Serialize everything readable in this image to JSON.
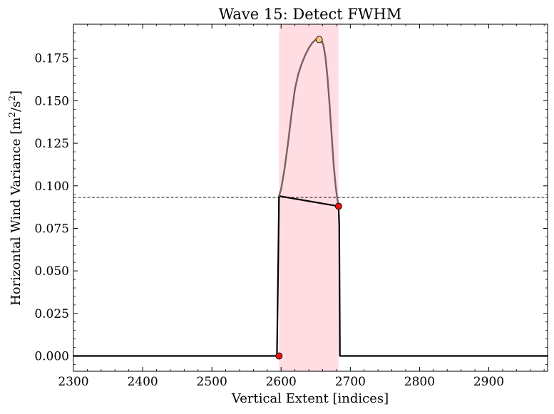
{
  "chart_data": {
    "type": "line",
    "title": "Wave 15: Detect FWHM",
    "xlabel": "Vertical Extent [indices]",
    "ylabel": "Horizontal Wind Variance [m²/s²]",
    "xlim": [
      2300,
      2985
    ],
    "ylim": [
      -0.009,
      0.195
    ],
    "x_ticks": [
      2300,
      2400,
      2500,
      2600,
      2700,
      2800,
      2900
    ],
    "x_tick_labels": [
      "2300",
      "2400",
      "2500",
      "2600",
      "2700",
      "2800",
      "2900"
    ],
    "y_ticks": [
      0.0,
      0.025,
      0.05,
      0.075,
      0.1,
      0.125,
      0.15,
      0.175
    ],
    "y_tick_labels": [
      "0.000",
      "0.025",
      "0.050",
      "0.075",
      "0.100",
      "0.125",
      "0.150",
      "0.175"
    ],
    "grid": false,
    "legend": "none",
    "half_max_line": {
      "y": 0.0932,
      "color": "#000000",
      "style": "dashed"
    },
    "fwhm_span": {
      "x": [
        2597,
        2683
      ],
      "color": "#ffdde3"
    },
    "series": [
      {
        "role": "signal",
        "color": "#000000",
        "x": [
          2300,
          2594,
          2596,
          2597,
          2683,
          2684,
          2685,
          2686,
          2985
        ],
        "y": [
          0.0,
          0.0,
          0.06,
          0.094,
          0.088,
          0.077,
          0.0,
          0.0,
          0.0
        ]
      },
      {
        "role": "fwhm-segment",
        "color": "#7b5f65",
        "x": [
          2597,
          2600,
          2605,
          2610,
          2615,
          2620,
          2625,
          2630,
          2635,
          2640,
          2645,
          2650,
          2655,
          2658,
          2661,
          2664,
          2667,
          2670,
          2673,
          2676,
          2679,
          2681,
          2683
        ],
        "y": [
          0.094,
          0.098,
          0.11,
          0.125,
          0.142,
          0.157,
          0.166,
          0.172,
          0.177,
          0.181,
          0.184,
          0.186,
          0.186,
          0.186,
          0.183,
          0.176,
          0.164,
          0.148,
          0.13,
          0.112,
          0.099,
          0.093,
          0.088
        ]
      }
    ],
    "markers": [
      {
        "x": 2597,
        "y": 0.0,
        "color": "#ee1111"
      },
      {
        "x": 2683,
        "y": 0.088,
        "color": "#ee1111"
      },
      {
        "x": 2655,
        "y": 0.186,
        "color": "#ffc27a"
      }
    ]
  }
}
